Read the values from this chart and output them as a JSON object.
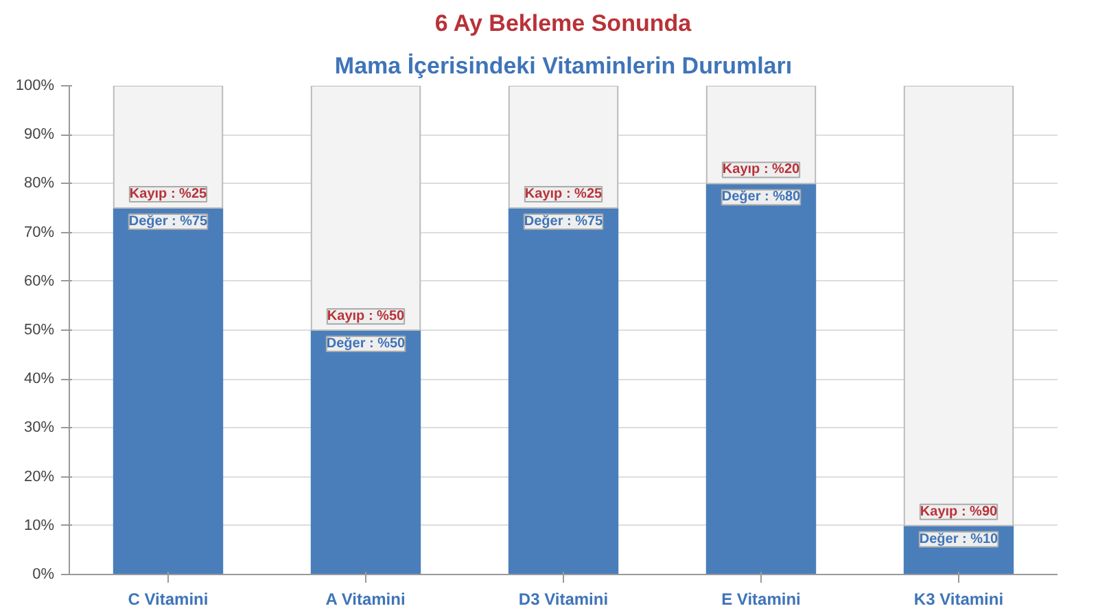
{
  "chart_data": {
    "type": "bar",
    "title": "6 Ay Bekleme Sonunda",
    "subtitle": "Mama İçerisindeki Vitaminlerin Durumları",
    "categories": [
      "C Vitamini",
      "A Vitamini",
      "D3 Vitamini",
      "E Vitamini",
      "K3 Vitamini"
    ],
    "stacked": true,
    "series": [
      {
        "color": "#4a7ebb",
        "values": [
          75,
          50,
          75,
          80,
          10
        ],
        "value_labels": [
          "Değer : %75",
          "Değer : %50",
          "Değer : %75",
          "Değer : %80",
          "Değer : %10"
        ]
      },
      {
        "color": "#f3f3f3",
        "values": [
          25,
          50,
          25,
          20,
          90
        ],
        "value_labels": [
          "Kayıp : %25",
          "Kayıp : %50",
          "Kayıp : %25",
          "Kayıp : %20",
          "Kayıp : %90"
        ]
      }
    ],
    "ylim": [
      0,
      100
    ],
    "yticks": [
      {
        "value": 0,
        "label": "0%"
      },
      {
        "value": 10,
        "label": "10%"
      },
      {
        "value": 20,
        "label": "20%"
      },
      {
        "value": 30,
        "label": "30%"
      },
      {
        "value": 40,
        "label": "40%"
      },
      {
        "value": 50,
        "label": "50%"
      },
      {
        "value": 60,
        "label": "60%"
      },
      {
        "value": 70,
        "label": "70%"
      },
      {
        "value": 80,
        "label": "80%"
      },
      {
        "value": 90,
        "label": "90%"
      },
      {
        "value": 100,
        "label": "100%"
      }
    ],
    "grid": "y"
  }
}
